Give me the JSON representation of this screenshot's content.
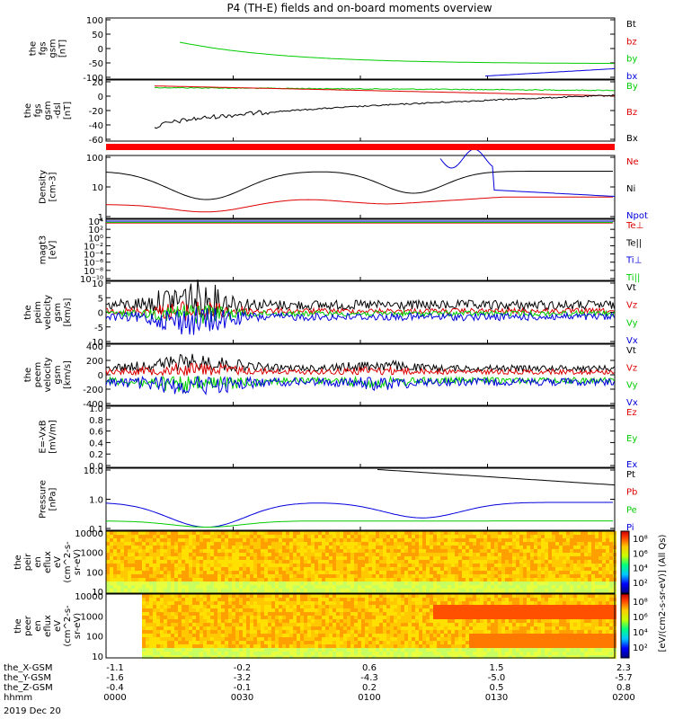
{
  "title": "P4 (TH-E) fields and on-board moments overview",
  "colors": {
    "black": "#000000",
    "red": "#dd0000",
    "green": "#00cc00",
    "blue": "#0000dd"
  },
  "chart_data": [
    {
      "id": "fgs",
      "type": "line",
      "ylabel": [
        "the",
        "fgs",
        "gsm",
        "[nT]"
      ],
      "yticks": [
        "100",
        "50",
        "0",
        "-50",
        "-100"
      ],
      "ylim": [
        -100,
        100
      ],
      "legend": [
        {
          "t": "Bt",
          "c": "black"
        },
        {
          "t": "bz",
          "c": "red"
        },
        {
          "t": "by",
          "c": "green"
        },
        {
          "t": "bx",
          "c": "blue"
        }
      ]
    },
    {
      "id": "fgs_dsl",
      "type": "line",
      "ylabel": [
        "the",
        "fgs",
        "gsm",
        "-dsl",
        "[nT]"
      ],
      "yticks": [
        "20",
        "0",
        "-20",
        "-40",
        "-60"
      ],
      "ylim": [
        -70,
        25
      ],
      "legend": [
        {
          "t": "By",
          "c": "green"
        },
        {
          "t": "Bz",
          "c": "red"
        },
        {
          "t": "Bx",
          "c": "black"
        }
      ]
    },
    {
      "id": "density",
      "type": "line",
      "ylabel": [
        "Density",
        "[cm-3]"
      ],
      "yticks": [
        "100",
        "10",
        "1"
      ],
      "log": true,
      "legend": [
        {
          "t": "Ne",
          "c": "red"
        },
        {
          "t": "Ni",
          "c": "black"
        },
        {
          "t": "Npot",
          "c": "blue"
        }
      ]
    },
    {
      "id": "magt3",
      "type": "line",
      "ylabel": [
        "magt3",
        "[eV]"
      ],
      "yticks": [
        "10⁴",
        "10²",
        "10⁰",
        "10⁻²",
        "10⁻⁴",
        "10⁻⁶",
        "10⁻⁸",
        "10⁻¹⁰"
      ],
      "log": true,
      "legend": [
        {
          "t": "Te⊥",
          "c": "red"
        },
        {
          "t": "Te||",
          "c": "black"
        },
        {
          "t": "Ti⊥",
          "c": "blue"
        },
        {
          "t": "Ti||",
          "c": "green"
        }
      ]
    },
    {
      "id": "peim",
      "type": "line",
      "ylabel": [
        "the",
        "peim",
        "velocity",
        "gsm",
        "[km/s]"
      ],
      "yticks": [
        "10",
        "5",
        "0",
        "-5",
        "-10"
      ],
      "ylim": [
        -12,
        12
      ],
      "legend": [
        {
          "t": "Vt",
          "c": "black"
        },
        {
          "t": "Vz",
          "c": "red"
        },
        {
          "t": "Vy",
          "c": "green"
        },
        {
          "t": "Vx",
          "c": "blue"
        }
      ]
    },
    {
      "id": "peem",
      "type": "line",
      "ylabel": [
        "the",
        "peem",
        "velocity",
        "gsm",
        "[km/s]"
      ],
      "yticks": [
        "400",
        "200",
        "0",
        "-200",
        "-400"
      ],
      "ylim": [
        -400,
        400
      ],
      "legend": [
        {
          "t": "Vt",
          "c": "black"
        },
        {
          "t": "Vz",
          "c": "red"
        },
        {
          "t": "Vy",
          "c": "green"
        },
        {
          "t": "Vx",
          "c": "blue"
        }
      ]
    },
    {
      "id": "efield",
      "type": "line",
      "ylabel": [
        "E=-VxB",
        "[mV/m]"
      ],
      "yticks": [
        "1.0",
        "0.8",
        "0.6",
        "0.4",
        "0.2",
        "0.0"
      ],
      "ylim": [
        0,
        1
      ],
      "legend": [
        {
          "t": "Ez",
          "c": "red"
        },
        {
          "t": "Ey",
          "c": "green"
        },
        {
          "t": "Ex",
          "c": "blue"
        }
      ]
    },
    {
      "id": "pressure",
      "type": "line",
      "ylabel": [
        "Pressure",
        "[nPa]"
      ],
      "yticks": [
        "10.0",
        "1.0",
        "0.1"
      ],
      "log": true,
      "legend": [
        {
          "t": "Pt",
          "c": "black"
        },
        {
          "t": "Pb",
          "c": "red"
        },
        {
          "t": "Pe",
          "c": "green"
        },
        {
          "t": "Pi",
          "c": "blue"
        }
      ]
    },
    {
      "id": "peir",
      "type": "heatmap",
      "ylabel": [
        "the",
        "peir",
        "en",
        "eflux",
        "eV",
        "(cm^2-s-",
        "sr-eV)"
      ],
      "yticks": [
        "10000",
        "1000",
        "100",
        "10"
      ],
      "log": true,
      "colorbar_ticks": [
        "10⁸",
        "10⁶",
        "10⁴",
        "10²"
      ]
    },
    {
      "id": "peer",
      "type": "heatmap",
      "ylabel": [
        "the",
        "peer",
        "en",
        "eflux",
        "eV",
        "(cm^2-s-",
        "sr-eV)"
      ],
      "yticks": [
        "10000",
        "1000",
        "100",
        "10"
      ],
      "log": true,
      "colorbar_ticks": [
        "10⁸",
        "10⁶",
        "10⁴",
        "10²"
      ],
      "colorbar_label": "[eV/(cm2-s-sr-eV)] (All Qs)"
    }
  ],
  "xaxis": {
    "rows": [
      {
        "label": "the_X-GSM",
        "vals": [
          "-1.1",
          "-0.2",
          "0.6",
          "1.5",
          "2.3"
        ]
      },
      {
        "label": "the_Y-GSM",
        "vals": [
          "-1.6",
          "-3.2",
          "-4.3",
          "-5.0",
          "-5.7"
        ]
      },
      {
        "label": "the_Z-GSM",
        "vals": [
          "-0.4",
          "-0.1",
          "0.2",
          "0.5",
          "0.8"
        ]
      },
      {
        "label": "hhmm",
        "vals": [
          "0000",
          "0030",
          "0100",
          "0130",
          "0200"
        ]
      }
    ],
    "date": "2019 Dec 20"
  }
}
